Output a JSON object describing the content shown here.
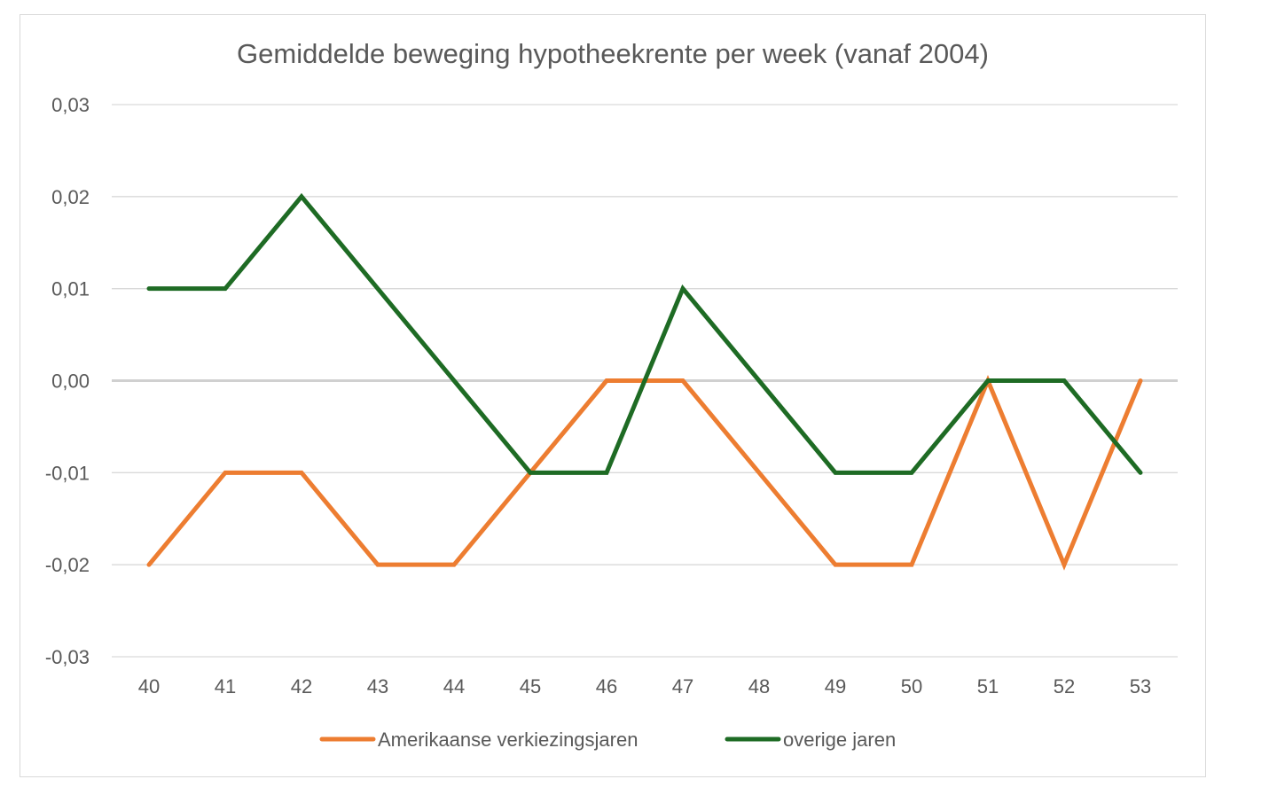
{
  "chart_data": {
    "type": "line",
    "title": "Gemiddelde beweging hypotheekrente per week (vanaf 2004)",
    "xlabel": "",
    "ylabel": "",
    "categories": [
      "40",
      "41",
      "42",
      "43",
      "44",
      "45",
      "46",
      "47",
      "48",
      "49",
      "50",
      "51",
      "52",
      "53"
    ],
    "ylim": [
      -0.03,
      0.03
    ],
    "yticks": [
      0.03,
      0.02,
      0.01,
      0.0,
      -0.01,
      -0.02,
      -0.03
    ],
    "ytick_labels": [
      "0,03",
      "0,02",
      "0,01",
      "0,00",
      "-0,01",
      "-0,02",
      "-0,03"
    ],
    "grid": true,
    "legend_position": "bottom",
    "series": [
      {
        "name": "Amerikaanse verkiezingsjaren",
        "color": "#ED7D31",
        "values": [
          -0.02,
          -0.01,
          -0.01,
          -0.02,
          -0.02,
          -0.01,
          0.0,
          0.0,
          -0.01,
          -0.02,
          -0.02,
          0.0,
          -0.02,
          0.0
        ]
      },
      {
        "name": "overige jaren",
        "color": "#1E6B24",
        "values": [
          0.01,
          0.01,
          0.02,
          0.01,
          0.0,
          -0.01,
          -0.01,
          0.01,
          0.0,
          -0.01,
          -0.01,
          0.0,
          0.0,
          -0.01
        ]
      }
    ]
  }
}
